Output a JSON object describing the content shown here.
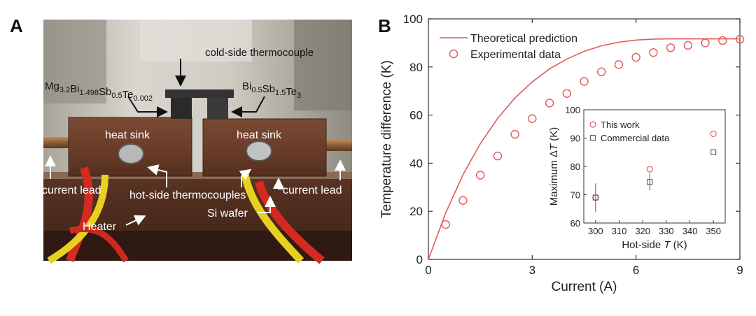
{
  "panel_a": {
    "letter": "A",
    "labels": {
      "cold_thermocouple": "cold-side thermocouple",
      "left_material": {
        "base": "Mg",
        "parts": [
          [
            "Mg",
            "3.2"
          ],
          [
            "Bi",
            "1.498"
          ],
          [
            "Sb",
            "0.5"
          ],
          [
            "Te",
            "0.002"
          ]
        ]
      },
      "right_material": {
        "parts": [
          [
            "Bi",
            "0.5"
          ],
          [
            "Sb",
            "1.5"
          ],
          [
            "Te",
            "3"
          ]
        ]
      },
      "heat_sink_left": "heat sink",
      "heat_sink_right": "heat sink",
      "current_lead_left": "current lead",
      "current_lead_right": "current lead",
      "hot_thermocouples": "hot-side thermocouples",
      "heater": "Heater",
      "si_wafer": "Si wafer"
    }
  },
  "panel_b": {
    "letter": "B"
  },
  "chart_data": [
    {
      "type": "scatter",
      "title": "",
      "xlabel": "Current (A)",
      "ylabel": "Temperature difference (K)",
      "xlim": [
        0,
        9
      ],
      "ylim": [
        0,
        100
      ],
      "xticks": [
        0,
        3,
        6,
        9
      ],
      "yticks": [
        0,
        20,
        40,
        60,
        80,
        100
      ],
      "legend_position": "top-left",
      "series": [
        {
          "name": "Theoretical prediction",
          "style": "line",
          "color": "#e05a5a",
          "x": [
            0,
            0.5,
            1,
            1.5,
            2,
            2.5,
            3,
            3.5,
            4,
            4.5,
            5,
            5.5,
            6,
            6.5,
            7,
            7.5,
            8,
            8.5,
            9
          ],
          "y": [
            0,
            19.3,
            35.2,
            48.1,
            58.6,
            67.1,
            73.8,
            79.2,
            83.3,
            86.5,
            88.8,
            90.3,
            91.2,
            91.6,
            91.7,
            91.7,
            91.7,
            91.7,
            91.7
          ]
        },
        {
          "name": "Experimental data",
          "style": "circle",
          "color": "#e05a5a",
          "x": [
            0.5,
            1,
            1.5,
            2,
            2.5,
            3,
            3.5,
            4,
            4.5,
            5,
            5.5,
            6,
            6.5,
            7,
            7.5,
            8,
            8.5,
            9
          ],
          "y": [
            14.5,
            24.5,
            35,
            43,
            52,
            58.5,
            65,
            69,
            74,
            78,
            81,
            84,
            86,
            88,
            89,
            90,
            91,
            91.5
          ]
        }
      ]
    },
    {
      "type": "scatter",
      "title": "",
      "xlabel": "Hot-side T (K)",
      "xlabel_parts": [
        "Hot-side ",
        "T",
        " (K)"
      ],
      "ylabel": "Maximum ΔT (K)",
      "ylabel_parts": [
        "Maximum Δ",
        "T",
        " (K)"
      ],
      "xlim": [
        295,
        355
      ],
      "ylim": [
        60,
        100
      ],
      "xticks": [
        300,
        310,
        320,
        330,
        340,
        350
      ],
      "yticks": [
        60,
        70,
        80,
        90,
        100
      ],
      "legend_position": "top-left",
      "series": [
        {
          "name": "This work",
          "style": "circle",
          "color": "#e05a5a",
          "x": [
            300,
            323,
            350
          ],
          "y": [
            69,
            79,
            91.5
          ],
          "yerr": [
            0,
            0,
            0
          ]
        },
        {
          "name": "Commercial data",
          "style": "square",
          "color": "#555555",
          "x": [
            300,
            323,
            350
          ],
          "y": [
            69,
            74.5,
            85
          ],
          "yerr": [
            5,
            3,
            0
          ]
        }
      ]
    }
  ]
}
